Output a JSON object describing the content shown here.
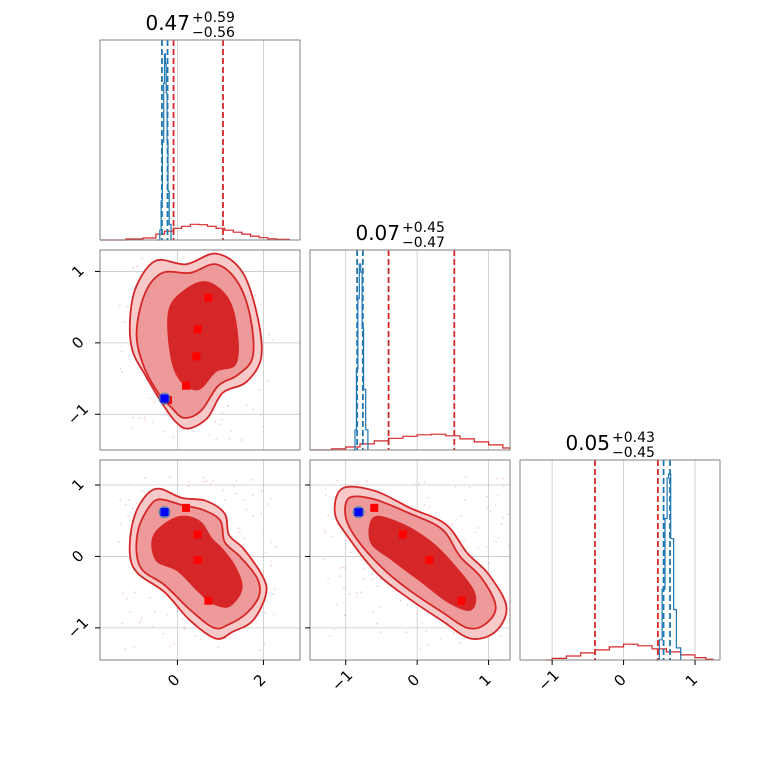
{
  "colors": {
    "red": "#d62728",
    "blue": "#1f77b4",
    "fill_outer": "#f7c9c9",
    "fill_mid": "#ee9a9b",
    "fill_inner": "#d62728",
    "marker_red": "#ff0000",
    "marker_blue": "#0000ff"
  },
  "chart_data": {
    "type": "corner",
    "parameters": 3,
    "tick_values": [
      [
        0,
        2
      ],
      [
        -1,
        0,
        1
      ],
      [
        -1,
        0,
        1
      ]
    ],
    "axis_ranges": [
      [
        -1.8,
        2.85
      ],
      [
        -1.5,
        1.3
      ],
      [
        -1.45,
        1.35
      ]
    ],
    "titles": [
      {
        "value": "0.47",
        "plus": "+0.59",
        "minus": "−0.56"
      },
      {
        "value": "0.07",
        "plus": "+0.45",
        "minus": "−0.47"
      },
      {
        "value": "0.05",
        "plus": "+0.43",
        "minus": "−0.45"
      }
    ],
    "diagonals": [
      {
        "red_quantiles": [
          -0.09,
          1.06
        ],
        "blue_quantiles": [
          -0.36,
          -0.23
        ],
        "red_hist": [
          [
            -1.8,
            0
          ],
          [
            -1.2,
            0.005
          ],
          [
            -0.8,
            0.01
          ],
          [
            -0.5,
            0.03
          ],
          [
            -0.3,
            0.045
          ],
          [
            -0.1,
            0.06
          ],
          [
            0.1,
            0.07
          ],
          [
            0.3,
            0.08
          ],
          [
            0.5,
            0.078
          ],
          [
            0.7,
            0.07
          ],
          [
            0.9,
            0.06
          ],
          [
            1.1,
            0.05
          ],
          [
            1.3,
            0.04
          ],
          [
            1.5,
            0.03
          ],
          [
            1.7,
            0.02
          ],
          [
            1.9,
            0.012
          ],
          [
            2.1,
            0.006
          ],
          [
            2.3,
            0.003
          ],
          [
            2.6,
            0
          ]
        ],
        "blue_hist": [
          [
            -0.45,
            0
          ],
          [
            -0.41,
            0.05
          ],
          [
            -0.38,
            0.2
          ],
          [
            -0.35,
            0.5
          ],
          [
            -0.32,
            0.8
          ],
          [
            -0.3,
            0.95
          ],
          [
            -0.28,
            0.9
          ],
          [
            -0.26,
            0.75
          ],
          [
            -0.24,
            0.5
          ],
          [
            -0.22,
            0.25
          ],
          [
            -0.19,
            0.08
          ],
          [
            -0.15,
            0
          ]
        ]
      },
      {
        "red_quantiles": [
          -0.4,
          0.52
        ],
        "blue_quantiles": [
          -0.84,
          -0.76
        ],
        "red_hist": [
          [
            -1.5,
            0
          ],
          [
            -1.2,
            0.006
          ],
          [
            -1.0,
            0.015
          ],
          [
            -0.8,
            0.03
          ],
          [
            -0.6,
            0.045
          ],
          [
            -0.4,
            0.058
          ],
          [
            -0.2,
            0.068
          ],
          [
            0.0,
            0.075
          ],
          [
            0.2,
            0.078
          ],
          [
            0.4,
            0.07
          ],
          [
            0.6,
            0.055
          ],
          [
            0.8,
            0.04
          ],
          [
            1.0,
            0.025
          ],
          [
            1.2,
            0.01
          ],
          [
            1.3,
            0
          ]
        ],
        "blue_hist": [
          [
            -0.9,
            0
          ],
          [
            -0.87,
            0.1
          ],
          [
            -0.85,
            0.4
          ],
          [
            -0.83,
            0.75
          ],
          [
            -0.81,
            0.92
          ],
          [
            -0.79,
            0.88
          ],
          [
            -0.77,
            0.6
          ],
          [
            -0.75,
            0.3
          ],
          [
            -0.72,
            0.1
          ],
          [
            -0.69,
            0
          ]
        ]
      },
      {
        "red_quantiles": [
          -0.4,
          0.48
        ],
        "blue_quantiles": [
          0.56,
          0.65
        ],
        "red_hist": [
          [
            -1.1,
            0
          ],
          [
            -1.0,
            0.008
          ],
          [
            -0.8,
            0.02
          ],
          [
            -0.6,
            0.035
          ],
          [
            -0.4,
            0.05
          ],
          [
            -0.2,
            0.065
          ],
          [
            0.0,
            0.078
          ],
          [
            0.2,
            0.07
          ],
          [
            0.4,
            0.055
          ],
          [
            0.6,
            0.04
          ],
          [
            0.8,
            0.025
          ],
          [
            1.0,
            0.012
          ],
          [
            1.15,
            0.004
          ],
          [
            1.25,
            0
          ]
        ],
        "blue_hist": [
          [
            0.45,
            0
          ],
          [
            0.5,
            0.1
          ],
          [
            0.54,
            0.35
          ],
          [
            0.58,
            0.7
          ],
          [
            0.61,
            0.9
          ],
          [
            0.63,
            0.92
          ],
          [
            0.66,
            0.6
          ],
          [
            0.7,
            0.25
          ],
          [
            0.74,
            0.06
          ],
          [
            0.8,
            0
          ]
        ]
      }
    ],
    "scatter_panels": [
      {
        "x": 0,
        "y": 1,
        "outer": [
          [
            -0.95,
            0.8
          ],
          [
            -0.5,
            1.15
          ],
          [
            0.2,
            1.1
          ],
          [
            0.9,
            1.25
          ],
          [
            1.5,
            1.0
          ],
          [
            1.85,
            0.4
          ],
          [
            1.95,
            -0.2
          ],
          [
            1.6,
            -0.55
          ],
          [
            1.05,
            -0.7
          ],
          [
            0.7,
            -1.05
          ],
          [
            0.25,
            -1.2
          ],
          [
            -0.05,
            -1.1
          ],
          [
            -0.35,
            -0.85
          ],
          [
            -0.75,
            -0.45
          ],
          [
            -1.05,
            -0.1
          ],
          [
            -1.1,
            0.35
          ]
        ],
        "mid": [
          [
            -0.75,
            0.7
          ],
          [
            -0.35,
            0.98
          ],
          [
            0.3,
            0.98
          ],
          [
            0.9,
            1.1
          ],
          [
            1.4,
            0.85
          ],
          [
            1.7,
            0.35
          ],
          [
            1.75,
            -0.2
          ],
          [
            1.4,
            -0.45
          ],
          [
            0.95,
            -0.6
          ],
          [
            0.55,
            -0.95
          ],
          [
            0.15,
            -1.05
          ],
          [
            -0.15,
            -0.9
          ],
          [
            -0.45,
            -0.7
          ],
          [
            -0.8,
            -0.3
          ],
          [
            -0.95,
            0.15
          ]
        ],
        "inner": [
          [
            -0.2,
            0.45
          ],
          [
            0.2,
            0.75
          ],
          [
            0.7,
            0.85
          ],
          [
            1.2,
            0.6
          ],
          [
            1.4,
            0.1
          ],
          [
            1.35,
            -0.3
          ],
          [
            0.9,
            -0.4
          ],
          [
            0.5,
            -0.65
          ],
          [
            0.1,
            -0.55
          ],
          [
            -0.15,
            -0.2
          ]
        ],
        "red_markers": [
          [
            0.72,
            0.63
          ],
          [
            0.47,
            0.19
          ],
          [
            0.44,
            -0.19
          ],
          [
            0.2,
            -0.6
          ],
          [
            -0.22,
            -0.8
          ]
        ],
        "blue_marker": [
          -0.3,
          -0.78
        ]
      },
      {
        "x": 0,
        "y": 2,
        "outer": [
          [
            -0.45,
            0.95
          ],
          [
            0.1,
            0.82
          ],
          [
            0.65,
            0.78
          ],
          [
            1.1,
            0.6
          ],
          [
            1.2,
            0.3
          ],
          [
            1.55,
            0.1
          ],
          [
            2.0,
            -0.3
          ],
          [
            2.05,
            -0.55
          ],
          [
            1.75,
            -0.9
          ],
          [
            1.3,
            -1.05
          ],
          [
            0.9,
            -1.15
          ],
          [
            0.3,
            -0.9
          ],
          [
            -0.3,
            -0.5
          ],
          [
            -0.9,
            -0.25
          ],
          [
            -1.1,
            0.0
          ],
          [
            -1.05,
            0.45
          ],
          [
            -0.8,
            0.8
          ]
        ],
        "mid": [
          [
            -0.4,
            0.8
          ],
          [
            0.1,
            0.72
          ],
          [
            0.6,
            0.65
          ],
          [
            1.0,
            0.5
          ],
          [
            1.1,
            0.2
          ],
          [
            1.45,
            0.0
          ],
          [
            1.85,
            -0.3
          ],
          [
            1.9,
            -0.55
          ],
          [
            1.6,
            -0.8
          ],
          [
            1.2,
            -0.95
          ],
          [
            0.85,
            -1.0
          ],
          [
            0.3,
            -0.75
          ],
          [
            -0.3,
            -0.4
          ],
          [
            -0.8,
            -0.2
          ],
          [
            -0.95,
            0.05
          ],
          [
            -0.9,
            0.4
          ],
          [
            -0.65,
            0.7
          ]
        ],
        "inner": [
          [
            0.0,
            0.55
          ],
          [
            0.5,
            0.5
          ],
          [
            0.8,
            0.25
          ],
          [
            1.05,
            0.1
          ],
          [
            1.35,
            -0.15
          ],
          [
            1.5,
            -0.45
          ],
          [
            1.2,
            -0.7
          ],
          [
            0.8,
            -0.65
          ],
          [
            0.5,
            -0.5
          ],
          [
            0.0,
            -0.2
          ],
          [
            -0.5,
            -0.05
          ],
          [
            -0.55,
            0.3
          ]
        ],
        "red_markers": [
          [
            0.2,
            0.68
          ],
          [
            0.47,
            0.31
          ],
          [
            0.47,
            -0.05
          ],
          [
            0.72,
            -0.62
          ]
        ],
        "blue_marker": [
          -0.3,
          0.62
        ]
      },
      {
        "x": 1,
        "y": 2,
        "outer": [
          [
            -1.05,
            0.95
          ],
          [
            -0.6,
            0.92
          ],
          [
            -0.1,
            0.68
          ],
          [
            0.4,
            0.45
          ],
          [
            0.7,
            0.05
          ],
          [
            1.0,
            -0.25
          ],
          [
            1.25,
            -0.7
          ],
          [
            1.1,
            -1.05
          ],
          [
            0.75,
            -1.15
          ],
          [
            0.35,
            -0.9
          ],
          [
            -0.1,
            -0.6
          ],
          [
            -0.55,
            -0.25
          ],
          [
            -0.95,
            0.25
          ],
          [
            -1.15,
            0.6
          ]
        ],
        "mid": [
          [
            -0.95,
            0.82
          ],
          [
            -0.6,
            0.8
          ],
          [
            -0.1,
            0.6
          ],
          [
            0.35,
            0.38
          ],
          [
            0.6,
            0.0
          ],
          [
            0.9,
            -0.3
          ],
          [
            1.1,
            -0.7
          ],
          [
            0.95,
            -0.95
          ],
          [
            0.7,
            -1.0
          ],
          [
            0.35,
            -0.78
          ],
          [
            -0.1,
            -0.48
          ],
          [
            -0.5,
            -0.15
          ],
          [
            -0.85,
            0.25
          ],
          [
            -1.0,
            0.55
          ]
        ],
        "inner": [
          [
            -0.6,
            0.55
          ],
          [
            -0.2,
            0.45
          ],
          [
            0.2,
            0.2
          ],
          [
            0.5,
            -0.1
          ],
          [
            0.8,
            -0.5
          ],
          [
            0.75,
            -0.75
          ],
          [
            0.45,
            -0.65
          ],
          [
            0.05,
            -0.35
          ],
          [
            -0.35,
            -0.05
          ],
          [
            -0.65,
            0.2
          ]
        ],
        "red_markers": [
          [
            -0.6,
            0.68
          ],
          [
            -0.2,
            0.31
          ],
          [
            0.17,
            -0.05
          ],
          [
            0.62,
            -0.62
          ]
        ],
        "blue_marker": [
          -0.82,
          0.62
        ]
      }
    ]
  }
}
